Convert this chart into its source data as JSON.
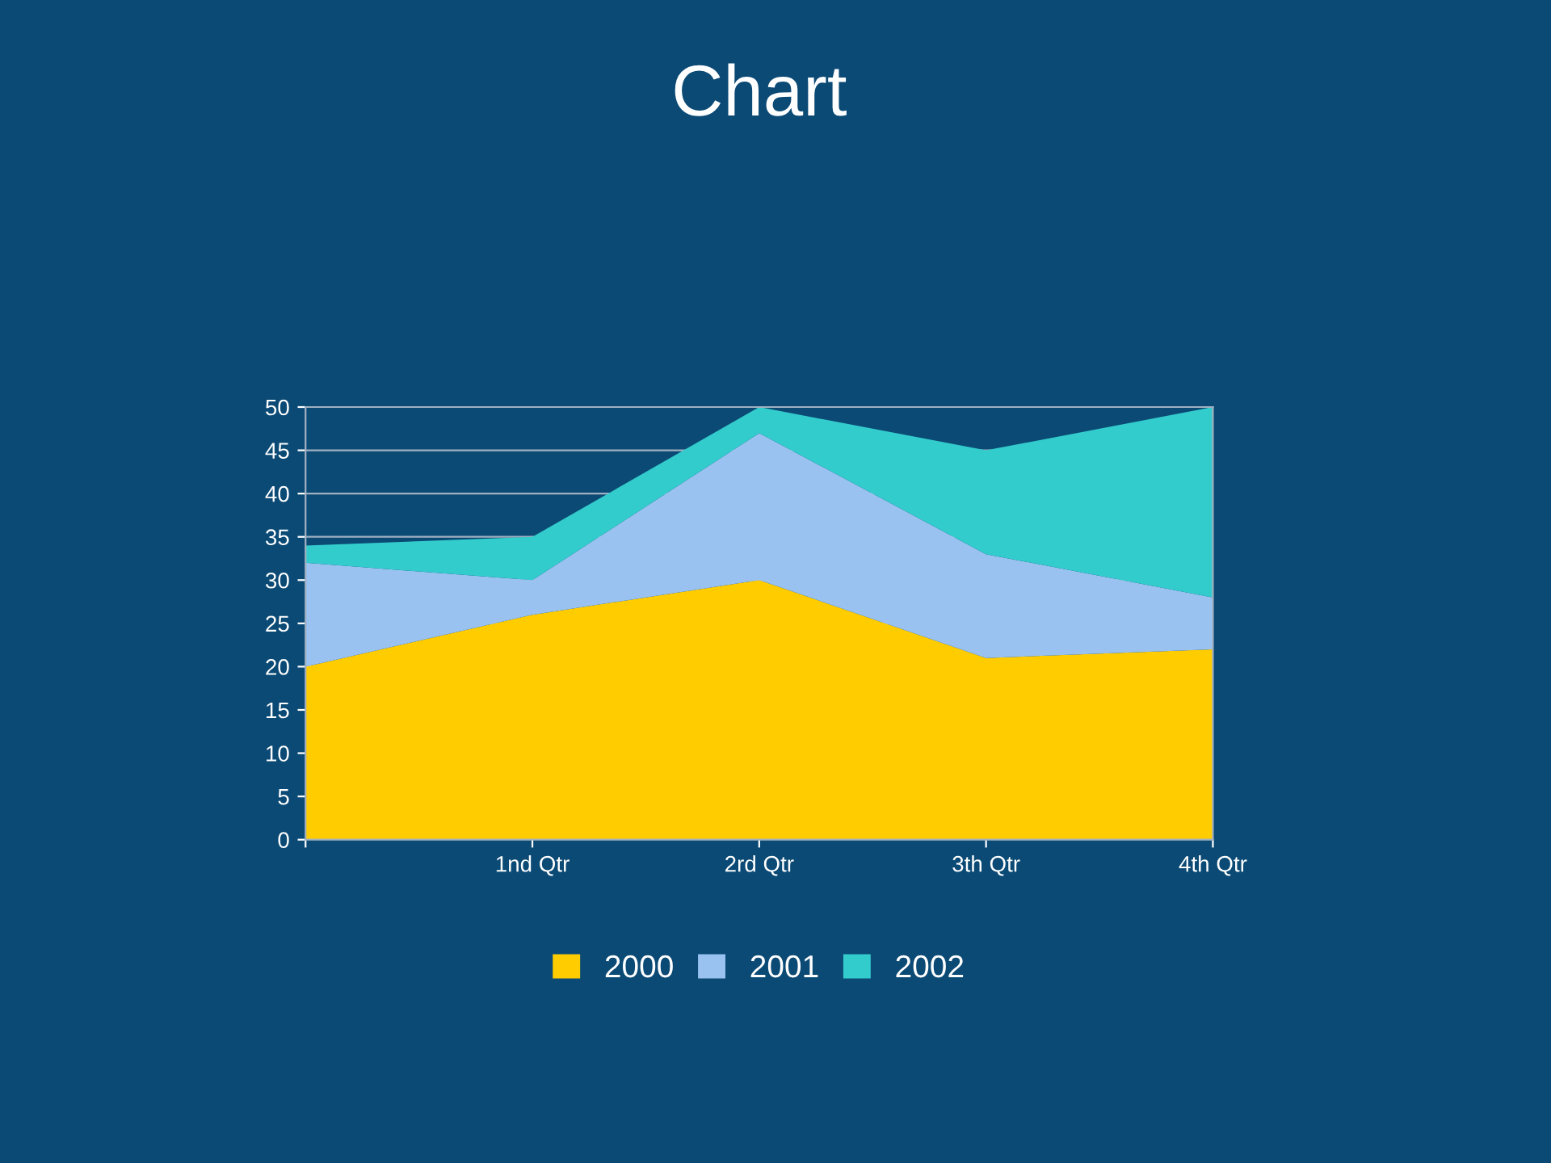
{
  "chart_data": {
    "type": "area",
    "title": "Chart",
    "stacked": true,
    "categories": [
      null,
      "1nd Qtr",
      "2rd Qtr",
      "3th Qtr",
      "4th Qtr"
    ],
    "series": [
      {
        "name": "2000",
        "color": "#ffcc00",
        "values": [
          20,
          26,
          30,
          21,
          22
        ]
      },
      {
        "name": "2001",
        "color": "#99c2f0",
        "values": [
          12,
          4,
          17,
          12,
          6
        ]
      },
      {
        "name": "2002",
        "color": "#33cccc",
        "values": [
          2,
          5,
          3,
          12,
          22
        ]
      }
    ],
    "ylim": [
      0,
      50
    ],
    "yticks": [
      0,
      5,
      10,
      15,
      20,
      25,
      30,
      35,
      40,
      45,
      50
    ],
    "grid": "y",
    "legend": "bottom"
  }
}
